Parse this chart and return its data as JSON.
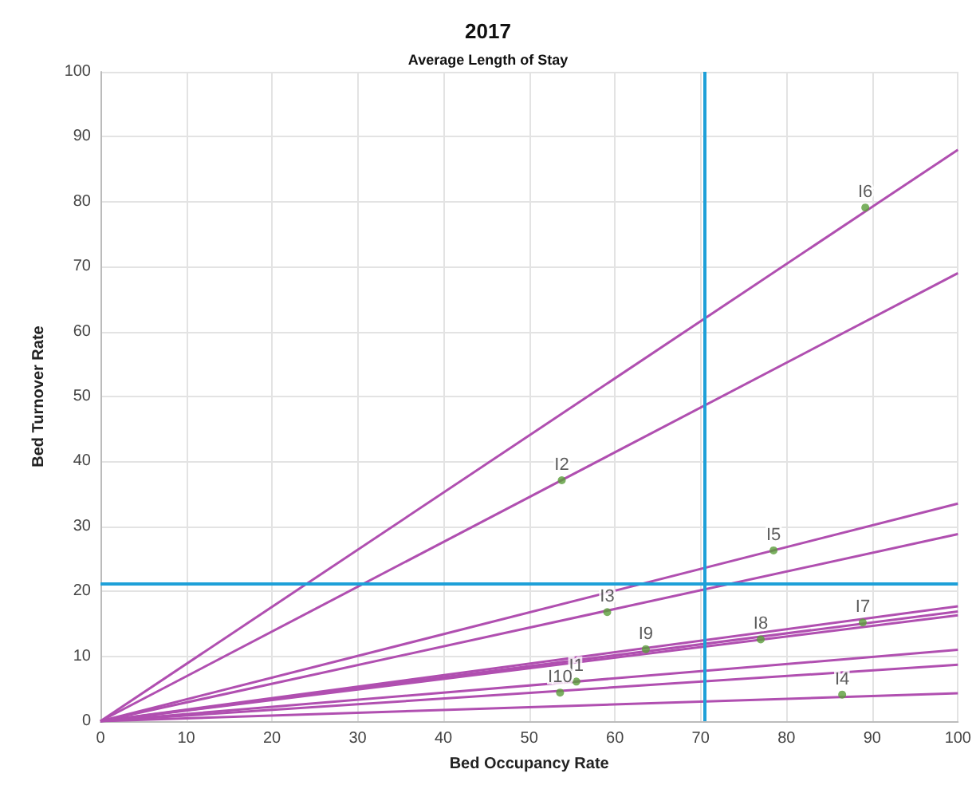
{
  "chart_data": {
    "type": "scatter",
    "title": "2017",
    "subtitle": "Average Length of Stay",
    "xlabel": "Bed Occupancy Rate",
    "ylabel": "Bed Turnover Rate",
    "xlim": [
      0,
      100
    ],
    "ylim": [
      0,
      100
    ],
    "xticks": [
      0,
      10,
      20,
      30,
      40,
      50,
      60,
      70,
      80,
      90,
      100
    ],
    "yticks": [
      0,
      10,
      20,
      30,
      40,
      50,
      60,
      70,
      80,
      90,
      100
    ],
    "grid": true,
    "series": [
      {
        "type": "line",
        "color": "#b04fb0",
        "x": [
          0,
          100
        ],
        "values": [
          0,
          88
        ],
        "marker": "none"
      },
      {
        "type": "line",
        "color": "#b04fb0",
        "x": [
          0,
          100
        ],
        "values": [
          0,
          69
        ],
        "marker": "none"
      },
      {
        "type": "line",
        "color": "#b04fb0",
        "x": [
          0,
          100
        ],
        "values": [
          0,
          33.5
        ],
        "marker": "none"
      },
      {
        "type": "line",
        "color": "#b04fb0",
        "x": [
          0,
          100
        ],
        "values": [
          0,
          28.8
        ],
        "marker": "none"
      },
      {
        "type": "line",
        "color": "#b04fb0",
        "x": [
          0,
          100
        ],
        "values": [
          0,
          17.7
        ],
        "marker": "none"
      },
      {
        "type": "line",
        "color": "#b04fb0",
        "x": [
          0,
          100
        ],
        "values": [
          0,
          16.9
        ],
        "marker": "none"
      },
      {
        "type": "line",
        "color": "#b04fb0",
        "x": [
          0,
          100
        ],
        "values": [
          0,
          16.3
        ],
        "marker": "none"
      },
      {
        "type": "line",
        "color": "#b04fb0",
        "x": [
          0,
          100
        ],
        "values": [
          0,
          11
        ],
        "marker": "none"
      },
      {
        "type": "line",
        "color": "#b04fb0",
        "x": [
          0,
          100
        ],
        "values": [
          0,
          8.7
        ],
        "marker": "none"
      },
      {
        "type": "line",
        "color": "#b04fb0",
        "x": [
          0,
          100
        ],
        "values": [
          0,
          4.3
        ],
        "marker": "none"
      },
      {
        "color": "#5a9e3a",
        "marker": "circle",
        "x": [
          55.5,
          53.8,
          59.1,
          86.5,
          78.5,
          89.2,
          88.9,
          77.0,
          63.6,
          53.6
        ],
        "values": [
          6.1,
          37.1,
          16.8,
          4.1,
          26.3,
          79.1,
          15.2,
          12.6,
          11.1,
          4.4
        ]
      }
    ],
    "ref_lines": [
      {
        "axis": "x",
        "value": 70.5,
        "color": "#1ea0d8"
      },
      {
        "axis": "y",
        "value": 21.1,
        "color": "#1ea0d8"
      }
    ],
    "annotations": [
      {
        "text": "I1",
        "x": 55.5,
        "y": 6.1
      },
      {
        "text": "I2",
        "x": 53.8,
        "y": 37.1
      },
      {
        "text": "I3",
        "x": 59.1,
        "y": 16.8
      },
      {
        "text": "I4",
        "x": 86.5,
        "y": 4.1
      },
      {
        "text": "I5",
        "x": 78.5,
        "y": 26.3
      },
      {
        "text": "I6",
        "x": 89.2,
        "y": 79.1
      },
      {
        "text": "I7",
        "x": 88.9,
        "y": 15.2
      },
      {
        "text": "I8",
        "x": 77.0,
        "y": 12.6
      },
      {
        "text": "I9",
        "x": 63.6,
        "y": 11.1
      },
      {
        "text": "I10",
        "x": 53.6,
        "y": 4.4
      }
    ]
  }
}
